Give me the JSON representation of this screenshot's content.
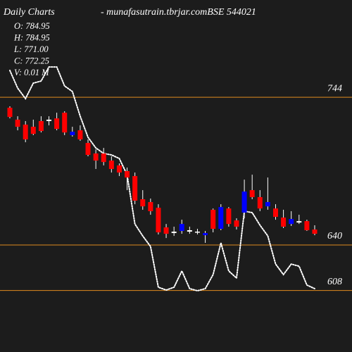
{
  "chart_data": {
    "type": "candlestick",
    "title": "Daily Charts",
    "subtitle": "- munafasutrain.tbrjar.comBSE 544021",
    "info": [
      "O: 784.95",
      "H: 784.95",
      "L: 771.00",
      "C: 772.25",
      "V: 0.01 M"
    ],
    "ylim": [
      564.7,
      812.4
    ],
    "yticks": [
      744,
      640,
      608
    ],
    "grid": true,
    "grid_color": "#e08a1e",
    "up_color": "#0000ff",
    "down_color": "#ff0000",
    "doji_color": "#ffffff",
    "open": [
      736.6,
      728.2,
      724.7,
      723.2,
      727.2,
      728.2,
      729.1,
      733.1,
      717.3,
      720.7,
      711.8,
      704.4,
      704.4,
      699.4,
      696.0,
      692.0,
      688.5,
      672.2,
      670.2,
      666.2,
      652.4,
      649.4,
      649.9,
      650.4,
      649.4,
      646.9,
      664.8,
      651.4,
      665.7,
      657.3,
      662.8,
      678.6,
      673.7,
      667.2,
      665.7,
      659.3,
      654.8,
      656.8,
      656.8,
      650.9
    ],
    "high": [
      737.6,
      730.6,
      727.2,
      728.2,
      730.6,
      730.6,
      733.1,
      734.1,
      723.2,
      724.2,
      714.3,
      707.3,
      708.3,
      702.4,
      697.4,
      694.5,
      691.0,
      678.6,
      672.7,
      668.7,
      654.8,
      652.9,
      657.8,
      652.9,
      651.4,
      649.9,
      665.7,
      668.7,
      666.7,
      658.8,
      686.0,
      689.5,
      678.6,
      687.5,
      668.7,
      664.8,
      663.8,
      661.3,
      657.8,
      653.9
    ],
    "low": [
      729.1,
      720.7,
      712.3,
      717.3,
      719.2,
      724.2,
      720.7,
      717.3,
      716.3,
      713.3,
      702.4,
      693.5,
      696.0,
      691.0,
      688.5,
      678.6,
      668.7,
      664.8,
      661.3,
      647.4,
      644.9,
      646.4,
      647.9,
      647.9,
      647.4,
      641.5,
      648.9,
      650.4,
      652.9,
      650.9,
      658.8,
      672.2,
      663.8,
      664.8,
      657.8,
      651.9,
      653.4,
      654.8,
      649.9,
      646.9
    ],
    "close": [
      730.1,
      723.2,
      714.3,
      718.2,
      720.2,
      727.2,
      721.7,
      719.2,
      719.7,
      714.3,
      703.4,
      699.4,
      698.4,
      693.5,
      691.0,
      687.5,
      671.2,
      667.2,
      663.8,
      648.9,
      647.9,
      648.4,
      654.8,
      649.4,
      648.9,
      648.4,
      651.4,
      666.7,
      654.8,
      652.9,
      677.6,
      673.7,
      665.7,
      670.2,
      659.8,
      652.9,
      658.3,
      655.8,
      650.4,
      647.9
    ],
    "colors": [
      "down",
      "down",
      "down",
      "down",
      "down",
      "doji",
      "down",
      "down",
      "up",
      "down",
      "down",
      "down",
      "down",
      "down",
      "down",
      "down",
      "down",
      "down",
      "down",
      "down",
      "down",
      "doji",
      "up",
      "doji",
      "doji",
      "up",
      "down",
      "up",
      "down",
      "down",
      "up",
      "down",
      "down",
      "up",
      "down",
      "down",
      "up",
      "doji",
      "down",
      "down"
    ],
    "overlay": {
      "color": "#ffffff",
      "values": [
        762.8,
        750.4,
        743.0,
        753.9,
        755.4,
        765.3,
        765.3,
        751.9,
        748.0,
        730.6,
        715.8,
        708.3,
        704.4,
        703.4,
        700.9,
        689.5,
        654.8,
        646.4,
        639.0,
        610.3,
        608.3,
        610.3,
        621.7,
        609.3,
        607.8,
        609.3,
        619.2,
        641.5,
        621.7,
        616.7,
        663.8,
        662.8,
        653.9,
        646.4,
        626.6,
        619.2,
        626.6,
        625.1,
        611.8,
        609.3
      ]
    }
  }
}
